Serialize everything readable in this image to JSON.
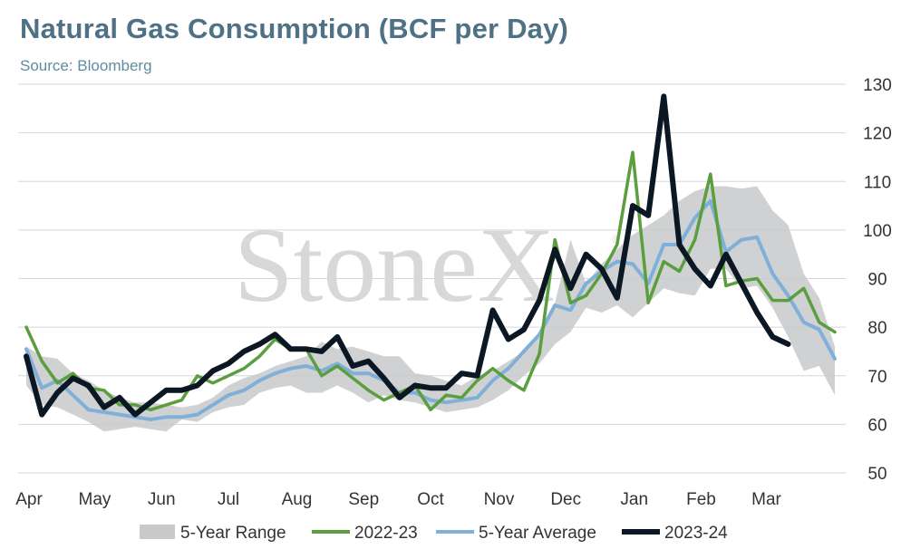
{
  "title": "Natural Gas Consumption (BCF per Day)",
  "subtitle": "Source: Bloomberg",
  "watermark": "StoneX",
  "watermark_mark": "®",
  "chart_data": {
    "type": "line",
    "title": "Natural Gas Consumption (BCF per Day)",
    "ylim": [
      50,
      130
    ],
    "y_ticks": [
      50,
      60,
      70,
      80,
      90,
      100,
      110,
      120,
      130
    ],
    "y_axis_side": "right",
    "grid": true,
    "legend_position": "bottom",
    "x_ticks": [
      {
        "label": "Apr",
        "week": 0
      },
      {
        "label": "May",
        "week": 4.4
      },
      {
        "label": "Jun",
        "week": 8.7
      },
      {
        "label": "Jul",
        "week": 13.0
      },
      {
        "label": "Aug",
        "week": 17.4
      },
      {
        "label": "Sep",
        "week": 21.7
      },
      {
        "label": "Oct",
        "week": 26.0
      },
      {
        "label": "Nov",
        "week": 30.4
      },
      {
        "label": "Dec",
        "week": 34.7
      },
      {
        "label": "Jan",
        "week": 39.1
      },
      {
        "label": "Feb",
        "week": 43.4
      },
      {
        "label": "Mar",
        "week": 47.6
      }
    ],
    "band": {
      "name": "5-Year Range",
      "color": "#c8c9ca",
      "upper": [
        76,
        74,
        73.5,
        70.5,
        69,
        67,
        65.5,
        64.5,
        64.5,
        64,
        63.5,
        64,
        65.5,
        68,
        69.5,
        70.5,
        72,
        73,
        74,
        77,
        75.5,
        76,
        75,
        74,
        74,
        70.5,
        70,
        69,
        68,
        70,
        71,
        73,
        75,
        79,
        85,
        98,
        89,
        93,
        96,
        99,
        101,
        103,
        106,
        108,
        109,
        109,
        108.5,
        109,
        104,
        101,
        91,
        86,
        76
      ],
      "lower": [
        68,
        64,
        63.5,
        62,
        60.5,
        58.5,
        59,
        59.5,
        59,
        58.5,
        61,
        60.5,
        62.5,
        63.5,
        64,
        66.5,
        67.5,
        68,
        66.5,
        66.5,
        68,
        66.5,
        64.5,
        66,
        65,
        64.5,
        63.5,
        62.5,
        63,
        63.5,
        65,
        67,
        70,
        72.5,
        76.5,
        79,
        84,
        83,
        84.5,
        82,
        85,
        88,
        87,
        86.5,
        92,
        92,
        88,
        88.5,
        84,
        78,
        71,
        72,
        66
      ]
    },
    "series": [
      {
        "name": "5-Year Average",
        "color": "#80b0d8",
        "width": 4,
        "values": [
          75.5,
          67.5,
          69,
          66,
          63,
          62.5,
          62,
          61.5,
          61,
          61.5,
          61.5,
          62,
          64,
          66,
          67,
          69,
          70.5,
          71.5,
          72,
          71,
          72.5,
          70.5,
          70.5,
          69,
          66.5,
          66.5,
          65,
          64.5,
          65,
          65.5,
          69,
          71.5,
          75,
          78.5,
          84.5,
          83.5,
          89,
          91.5,
          93.5,
          93,
          89,
          97,
          97,
          102.5,
          106,
          95.5,
          98,
          98.5,
          91,
          86.5,
          81,
          79.5,
          73.5
        ]
      },
      {
        "name": "2022-23",
        "color": "#5b9e3f",
        "width": 3.5,
        "values": [
          80,
          73,
          68.5,
          70.5,
          67.5,
          67,
          64,
          64,
          63,
          64,
          65,
          70,
          68.5,
          70,
          71.5,
          74,
          77.5,
          75.5,
          75.5,
          70,
          72,
          69.5,
          67,
          65,
          66.5,
          68,
          63,
          66,
          65.5,
          69,
          71.5,
          69,
          67,
          74.5,
          98,
          85,
          86.5,
          91,
          97,
          116,
          85,
          93.5,
          91.5,
          98,
          111.5,
          88.5,
          89.5,
          90,
          85.5,
          85.5,
          88,
          81,
          79
        ]
      },
      {
        "name": "2023-24",
        "color": "#0b1723",
        "width": 6,
        "values": [
          74,
          62,
          66.5,
          69.5,
          68,
          63.5,
          65.5,
          62,
          64.5,
          67,
          67,
          68,
          71,
          72.5,
          75,
          76.5,
          78.5,
          75.5,
          75.5,
          75,
          78,
          72,
          73,
          69.5,
          65.5,
          68,
          67.5,
          67.5,
          70.5,
          70,
          83.5,
          77.5,
          79.5,
          85.5,
          96,
          88,
          95,
          92,
          86,
          105,
          103,
          127.5,
          97,
          92,
          88.5,
          95,
          89,
          83,
          78,
          76.5
        ]
      }
    ],
    "legend": [
      {
        "label": "5-Year Range",
        "kind": "band",
        "color": "#c8c9ca"
      },
      {
        "label": "2022-23",
        "kind": "line",
        "color": "#5b9e3f"
      },
      {
        "label": "5-Year Average",
        "kind": "line",
        "color": "#80b0d8"
      },
      {
        "label": "2023-24",
        "kind": "line",
        "color": "#0b1723"
      }
    ]
  }
}
